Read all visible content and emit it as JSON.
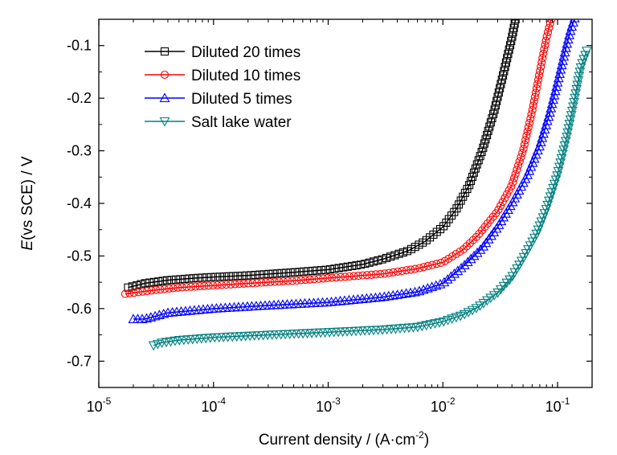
{
  "chart_data": {
    "type": "scatter",
    "xscale": "log",
    "xlim": [
      1e-05,
      0.2
    ],
    "ylim": [
      -0.75,
      -0.05
    ],
    "xlabel": "Current density / (A·cm⁻²)",
    "xlabel_parts": {
      "prefix": "Current density / (A·cm",
      "exponent": "-2",
      "suffix": ")"
    },
    "ylabel": "E(vs SCE) / V",
    "ylabel_parts": {
      "italic": "E",
      "rest": "(vs SCE) / V"
    },
    "x_tick_labels": [
      {
        "base": "10",
        "exp": "-5",
        "value": 1e-05
      },
      {
        "base": "10",
        "exp": "-4",
        "value": 0.0001
      },
      {
        "base": "10",
        "exp": "-3",
        "value": 0.001
      },
      {
        "base": "10",
        "exp": "-2",
        "value": 0.01
      },
      {
        "base": "10",
        "exp": "-1",
        "value": 0.1
      }
    ],
    "y_ticks": [
      -0.1,
      -0.2,
      -0.3,
      -0.4,
      -0.5,
      -0.6,
      -0.7
    ],
    "y_tick_labels": [
      "-0.1",
      "-0.2",
      "-0.3",
      "-0.4",
      "-0.5",
      "-0.6",
      "-0.7"
    ],
    "legend_position": "top-left",
    "series": [
      {
        "name": "Diluted 20 times",
        "color": "#000000",
        "marker": "square",
        "x": [
          1.8e-05,
          2.5e-05,
          4e-05,
          7e-05,
          0.0001,
          0.0002,
          0.0005,
          0.001,
          0.002,
          0.003,
          0.005,
          0.007,
          0.01,
          0.013,
          0.017,
          0.022,
          0.028,
          0.034,
          0.04,
          0.043
        ],
        "y": [
          -0.56,
          -0.552,
          -0.546,
          -0.542,
          -0.54,
          -0.537,
          -0.531,
          -0.526,
          -0.516,
          -0.506,
          -0.49,
          -0.472,
          -0.445,
          -0.412,
          -0.365,
          -0.3,
          -0.225,
          -0.15,
          -0.085,
          -0.05
        ]
      },
      {
        "name": "Diluted 10 times",
        "color": "#ff0000",
        "marker": "circle",
        "x": [
          1.7e-05,
          2e-05,
          3e-05,
          5e-05,
          0.0001,
          0.0002,
          0.0005,
          0.001,
          0.003,
          0.006,
          0.01,
          0.015,
          0.02,
          0.03,
          0.04,
          0.05,
          0.06,
          0.07,
          0.08,
          0.088
        ],
        "y": [
          -0.572,
          -0.57,
          -0.565,
          -0.56,
          -0.556,
          -0.552,
          -0.547,
          -0.542,
          -0.534,
          -0.524,
          -0.512,
          -0.488,
          -0.462,
          -0.415,
          -0.365,
          -0.3,
          -0.225,
          -0.15,
          -0.085,
          -0.05
        ]
      },
      {
        "name": "Diluted 5 times",
        "color": "#0000ff",
        "marker": "triangle-up",
        "x": [
          2e-05,
          2.5e-05,
          4e-05,
          0.0001,
          0.0003,
          0.001,
          0.003,
          0.006,
          0.01,
          0.015,
          0.022,
          0.03,
          0.04,
          0.055,
          0.07,
          0.085,
          0.1,
          0.115,
          0.13,
          0.145
        ],
        "y": [
          -0.62,
          -0.62,
          -0.608,
          -0.6,
          -0.594,
          -0.588,
          -0.578,
          -0.568,
          -0.552,
          -0.52,
          -0.485,
          -0.445,
          -0.4,
          -0.345,
          -0.29,
          -0.23,
          -0.17,
          -0.115,
          -0.07,
          -0.04
        ]
      },
      {
        "name": "Salt lake water",
        "color": "#008080",
        "marker": "triangle-down",
        "x": [
          3e-05,
          3.5e-05,
          5e-05,
          0.0001,
          0.0003,
          0.001,
          0.003,
          0.006,
          0.01,
          0.015,
          0.02,
          0.03,
          0.04,
          0.05,
          0.065,
          0.08,
          0.1,
          0.12,
          0.14,
          0.16,
          0.18
        ],
        "y": [
          -0.67,
          -0.665,
          -0.66,
          -0.655,
          -0.65,
          -0.645,
          -0.64,
          -0.635,
          -0.625,
          -0.612,
          -0.598,
          -0.57,
          -0.54,
          -0.505,
          -0.46,
          -0.41,
          -0.345,
          -0.275,
          -0.205,
          -0.14,
          -0.11
        ]
      }
    ]
  }
}
